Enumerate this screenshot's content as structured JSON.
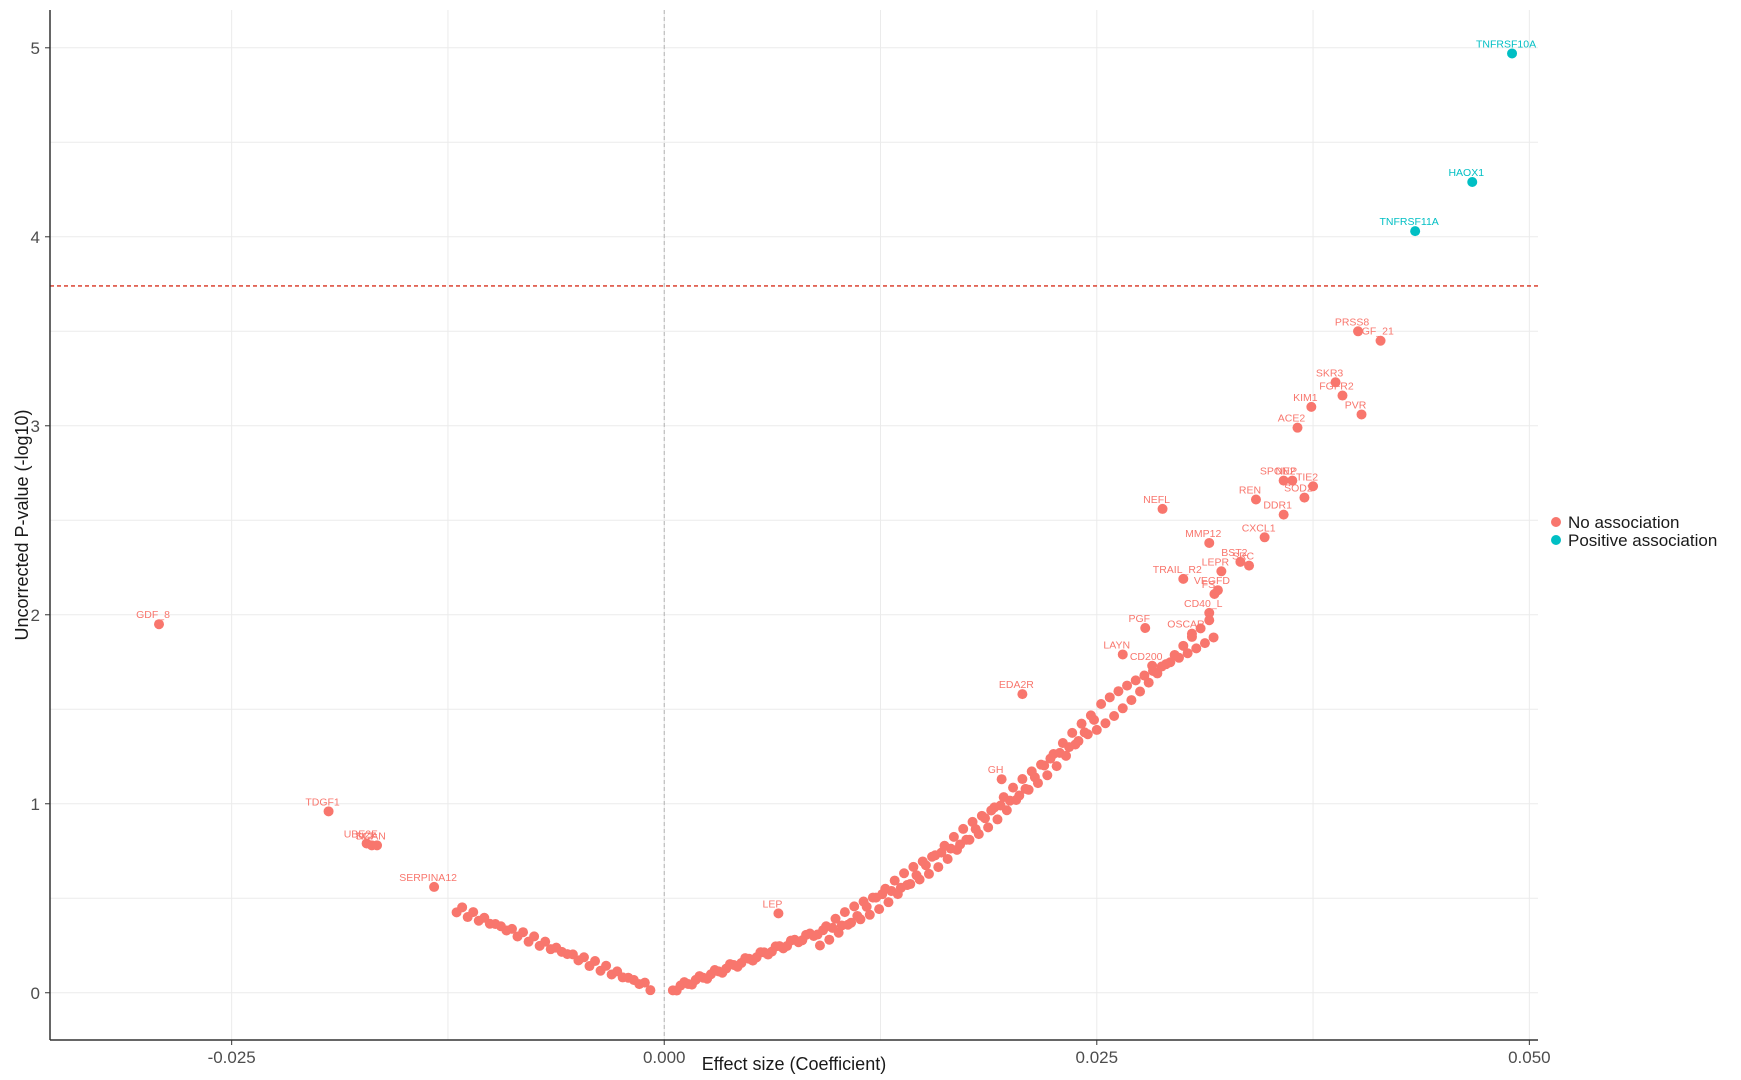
{
  "chart_data": {
    "type": "scatter",
    "title": "",
    "xlabel": "Effect size (Coefficient)",
    "ylabel": "Uncorrected P-value (-log10)",
    "xlim": [
      -0.0355,
      0.0505
    ],
    "ylim": [
      -0.25,
      5.2
    ],
    "x_ticks": [
      -0.025,
      0.0,
      0.025,
      0.05
    ],
    "x_tick_labels": [
      "-0.025",
      "0.000",
      "0.025",
      "0.050"
    ],
    "y_ticks": [
      0,
      1,
      2,
      3,
      4,
      5
    ],
    "y_tick_labels": [
      "0",
      "1",
      "2",
      "3",
      "4",
      "5"
    ],
    "threshold_y": 3.74,
    "zero_x": 0.0,
    "grid": true,
    "legend_position": "right",
    "series": [
      {
        "name": "No association",
        "color": "#F8766D",
        "labeled_points": [
          {
            "label": "GDF_8",
            "x": -0.0292,
            "y": 1.95
          },
          {
            "label": "TDGF1",
            "x": -0.0194,
            "y": 0.96
          },
          {
            "label": "UBE2F",
            "x": -0.0172,
            "y": 0.79
          },
          {
            "label": "SCF",
            "x": -0.0169,
            "y": 0.78
          },
          {
            "label": "NCAN",
            "x": -0.0166,
            "y": 0.78
          },
          {
            "label": "SERPINA12",
            "x": -0.0133,
            "y": 0.56
          },
          {
            "label": "LEP",
            "x": 0.0066,
            "y": 0.42
          },
          {
            "label": "GH",
            "x": 0.0195,
            "y": 1.13
          },
          {
            "label": "EDA2R",
            "x": 0.0207,
            "y": 1.58
          },
          {
            "label": "LAYN",
            "x": 0.0265,
            "y": 1.79
          },
          {
            "label": "CD200",
            "x": 0.0282,
            "y": 1.73
          },
          {
            "label": "PGF",
            "x": 0.0278,
            "y": 1.93
          },
          {
            "label": "OSCAR",
            "x": 0.0305,
            "y": 1.9
          },
          {
            "label": "CD40_L",
            "x": 0.0315,
            "y": 2.01
          },
          {
            "label": "FS",
            "x": 0.0318,
            "y": 2.11
          },
          {
            "label": "TRAIL_R2",
            "x": 0.03,
            "y": 2.19
          },
          {
            "label": "VEGFD",
            "x": 0.032,
            "y": 2.13
          },
          {
            "label": "LEPR",
            "x": 0.0322,
            "y": 2.23
          },
          {
            "label": "MMP12",
            "x": 0.0315,
            "y": 2.38
          },
          {
            "label": "NEFL",
            "x": 0.0288,
            "y": 2.56
          },
          {
            "label": "BST2",
            "x": 0.0333,
            "y": 2.28
          },
          {
            "label": "SRC",
            "x": 0.0338,
            "y": 2.26
          },
          {
            "label": "CXCL1",
            "x": 0.0347,
            "y": 2.41
          },
          {
            "label": "DDR1",
            "x": 0.0358,
            "y": 2.53
          },
          {
            "label": "REN",
            "x": 0.0342,
            "y": 2.61
          },
          {
            "label": "SOD2",
            "x": 0.037,
            "y": 2.62
          },
          {
            "label": "SPON2",
            "x": 0.0358,
            "y": 2.71
          },
          {
            "label": "NEP",
            "x": 0.0363,
            "y": 2.71
          },
          {
            "label": "TIE2",
            "x": 0.0375,
            "y": 2.68
          },
          {
            "label": "ACE2",
            "x": 0.0366,
            "y": 2.99
          },
          {
            "label": "KIM1",
            "x": 0.0374,
            "y": 3.1
          },
          {
            "label": "PVR",
            "x": 0.0403,
            "y": 3.06
          },
          {
            "label": "FGFR2",
            "x": 0.0392,
            "y": 3.16
          },
          {
            "label": "SKR3",
            "x": 0.0388,
            "y": 3.23
          },
          {
            "label": "FGF_21",
            "x": 0.0414,
            "y": 3.45
          },
          {
            "label": "PRSS8",
            "x": 0.0401,
            "y": 3.5
          }
        ]
      },
      {
        "name": "Positive association",
        "color": "#00BFC4",
        "labeled_points": [
          {
            "label": "TNFRSF11A",
            "x": 0.0434,
            "y": 4.03
          },
          {
            "label": "HAOX1",
            "x": 0.0467,
            "y": 4.29
          },
          {
            "label": "TNFRSF10A",
            "x": 0.049,
            "y": 4.97
          }
        ]
      }
    ]
  }
}
